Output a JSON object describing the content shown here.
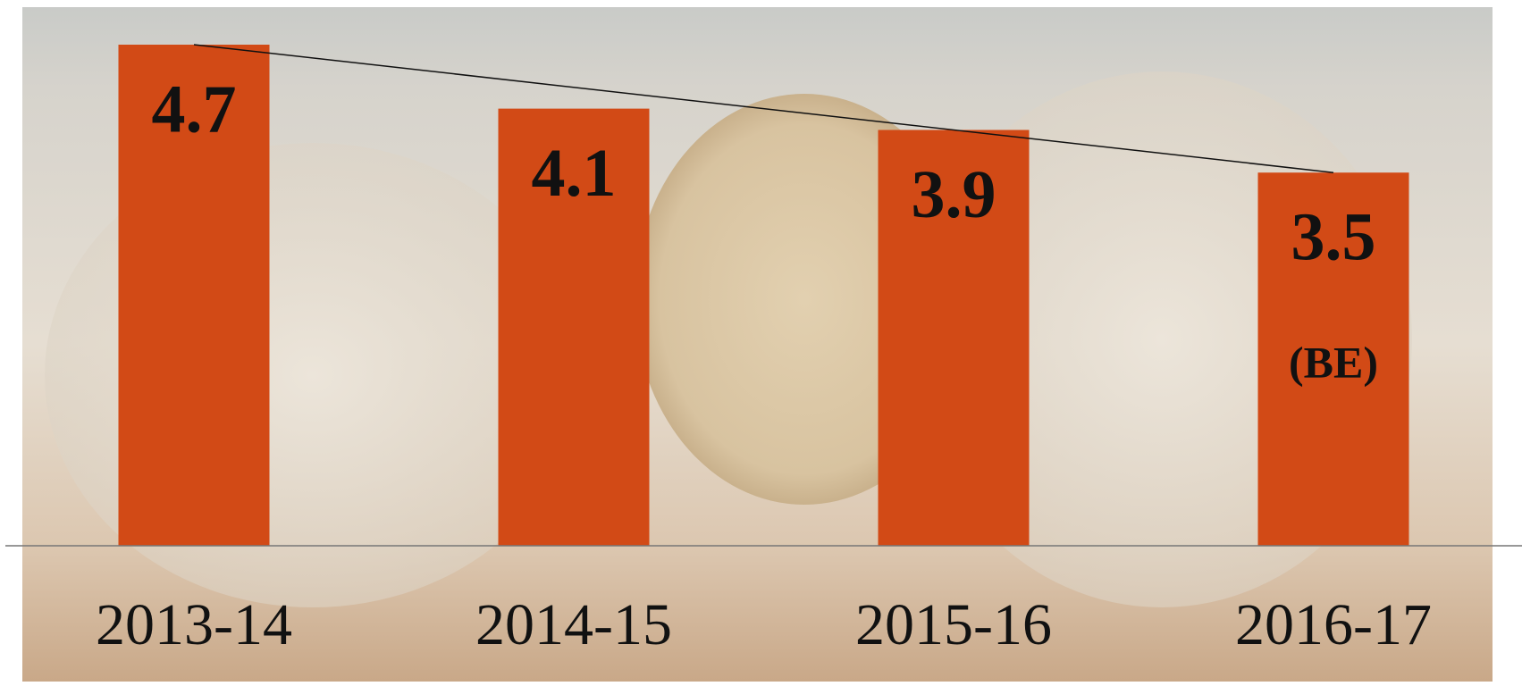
{
  "chart_data": {
    "type": "bar",
    "categories": [
      "2013-14",
      "2014-15",
      "2015-16",
      "2016-17"
    ],
    "values": [
      4.7,
      4.1,
      3.9,
      3.5
    ],
    "annotation": "(BE)",
    "color": "#d24a16",
    "trend_line": true
  }
}
